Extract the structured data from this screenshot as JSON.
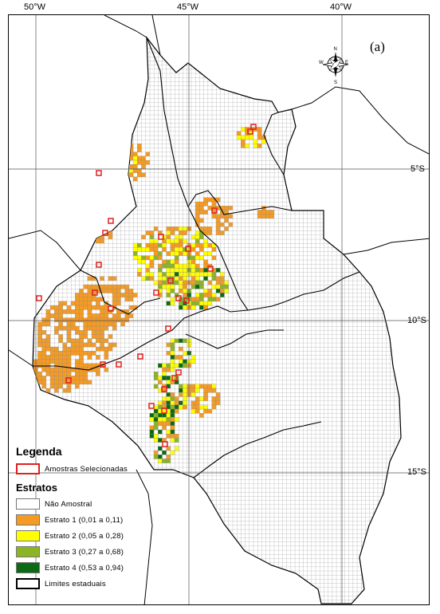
{
  "map": {
    "panel_label": "(a)",
    "lon_labels": [
      "50°W",
      "45°W",
      "40°W"
    ],
    "lat_labels": [
      "5°S",
      "10°S",
      "15°S"
    ],
    "legend": {
      "title": "Legenda",
      "sample_label": "Amostras Selecionadas",
      "strata_title": "Estratos",
      "items": [
        {
          "label": "Não Amostral",
          "color": "#ffffff"
        },
        {
          "label": "Estrato 1 (0,01 a 0,11)",
          "color": "#f59b23"
        },
        {
          "label": "Estrato 2 (0,05 a 0,28)",
          "color": "#ffff00"
        },
        {
          "label": "Estrato 3 (0,27 a 0,68)",
          "color": "#8db425"
        },
        {
          "label": "Estrato 4 (0,53 a 0,94)",
          "color": "#0b6a13"
        }
      ],
      "boundary_label": "Limites estaduais"
    },
    "compass_letters": {
      "n": "N",
      "s": "S",
      "e": "E",
      "w": "W"
    },
    "colors": {
      "sample_outline": "#e02020",
      "grid_line": "#8c8c8c",
      "border": "#000000"
    }
  }
}
